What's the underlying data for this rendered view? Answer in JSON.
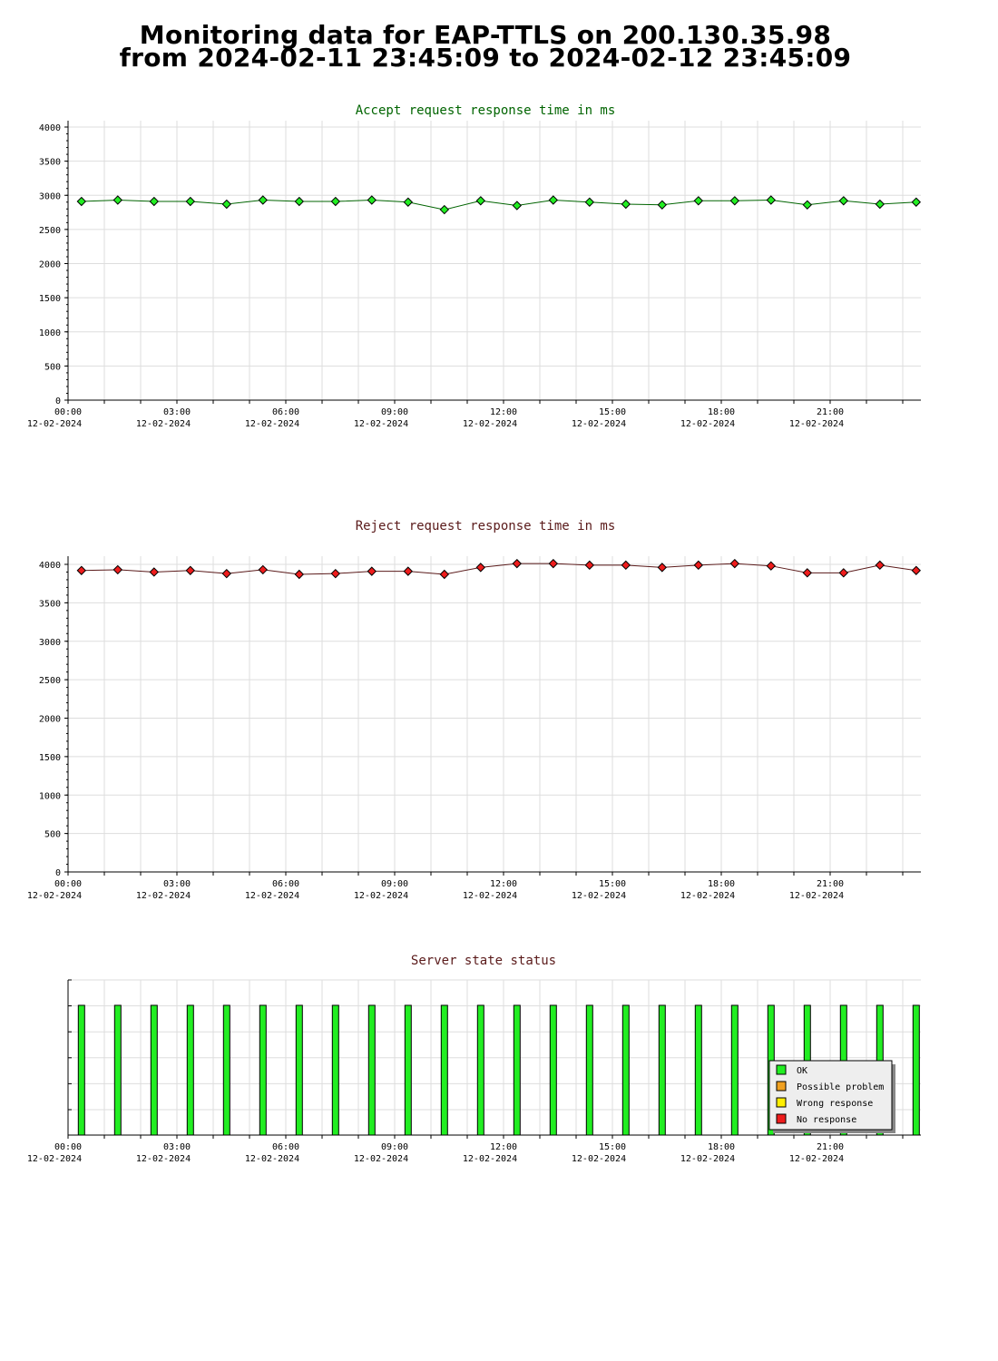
{
  "page": {
    "title_line1": "Monitoring data for EAP-TTLS on 200.130.35.98",
    "title_line2": "from 2024-02-11 23:45:09 to 2024-02-12 23:45:09"
  },
  "colors": {
    "accept_line": "#006400",
    "accept_marker": "#22ee22",
    "reject_line": "#5a1a1a",
    "reject_marker": "#ee1c1c",
    "ok": "#22ee22",
    "possible_problem": "#f0a020",
    "wrong_response": "#ffee00",
    "no_response": "#ee1c1c",
    "grid": "#dddddd"
  },
  "x_axis": {
    "time_labels": [
      "00:00",
      "03:00",
      "06:00",
      "09:00",
      "12:00",
      "15:00",
      "18:00",
      "21:00"
    ],
    "date_labels": [
      "12-02-2024",
      "12-02-2024",
      "12-02-2024",
      "12-02-2024",
      "12-02-2024",
      "12-02-2024",
      "12-02-2024",
      "12-02-2024"
    ],
    "range_hours": [
      0,
      23.5
    ]
  },
  "chart_data": [
    {
      "type": "line",
      "title": "Accept request response time in ms",
      "xlabel": "",
      "ylabel": "",
      "ylim": [
        0,
        4000
      ],
      "yticks": [
        0,
        500,
        1000,
        1500,
        2000,
        2500,
        3000,
        3500,
        4000
      ],
      "grid": true,
      "x_hours": [
        0.37,
        1.37,
        2.37,
        3.37,
        4.37,
        5.37,
        6.37,
        7.37,
        8.37,
        9.37,
        10.37,
        11.37,
        12.37,
        13.37,
        14.37,
        15.37,
        16.37,
        17.37,
        18.37,
        19.37,
        20.37,
        21.37,
        22.37,
        23.37
      ],
      "series": [
        {
          "values": [
            2910,
            2930,
            2910,
            2910,
            2870,
            2930,
            2910,
            2910,
            2930,
            2900,
            2790,
            2920,
            2850,
            2930,
            2900,
            2870,
            2860,
            2920,
            2920,
            2930,
            2860,
            2920,
            2870,
            2900
          ]
        }
      ]
    },
    {
      "type": "line",
      "title": "Reject request response time in ms",
      "xlabel": "",
      "ylabel": "",
      "ylim": [
        0,
        4000
      ],
      "yticks": [
        0,
        500,
        1000,
        1500,
        2000,
        2500,
        3000,
        3500,
        4000
      ],
      "grid": true,
      "x_hours": [
        0.37,
        1.37,
        2.37,
        3.37,
        4.37,
        5.37,
        6.37,
        7.37,
        8.37,
        9.37,
        10.37,
        11.37,
        12.37,
        13.37,
        14.37,
        15.37,
        16.37,
        17.37,
        18.37,
        19.37,
        20.37,
        21.37,
        22.37,
        23.37
      ],
      "series": [
        {
          "values": [
            3920,
            3930,
            3900,
            3920,
            3880,
            3930,
            3870,
            3880,
            3910,
            3910,
            3870,
            3960,
            4010,
            4010,
            3990,
            3990,
            3960,
            3990,
            4010,
            3980,
            3890,
            3890,
            3990,
            3920
          ]
        }
      ]
    },
    {
      "type": "bar",
      "title": "Server state status",
      "xlabel": "",
      "ylabel": "",
      "grid": true,
      "legend_position": "bottom-right",
      "x_hours": [
        0.37,
        1.37,
        2.37,
        3.37,
        4.37,
        5.37,
        6.37,
        7.37,
        8.37,
        9.37,
        10.37,
        11.37,
        12.37,
        13.37,
        14.37,
        15.37,
        16.37,
        17.37,
        18.37,
        19.37,
        20.37,
        21.37,
        22.37,
        23.37
      ],
      "states": [
        "OK",
        "OK",
        "OK",
        "OK",
        "OK",
        "OK",
        "OK",
        "OK",
        "OK",
        "OK",
        "OK",
        "OK",
        "OK",
        "OK",
        "OK",
        "OK",
        "OK",
        "OK",
        "OK",
        "OK",
        "OK",
        "OK",
        "OK",
        "OK"
      ],
      "legend": [
        "OK",
        "Possible problem",
        "Wrong response",
        "No response"
      ]
    }
  ]
}
